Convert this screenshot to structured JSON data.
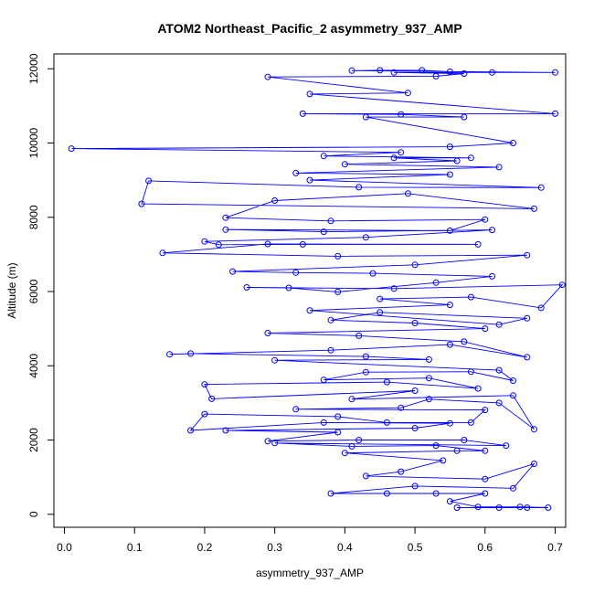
{
  "chart_data": {
    "type": "line",
    "title": "ATOM2 Northeast_Pacific_2 asymmetry_937_AMP",
    "xlabel": "asymmetry_937_AMP",
    "ylabel": "Altitude (m)",
    "xlim": [
      -0.015,
      0.715
    ],
    "ylim": [
      -350,
      12400
    ],
    "x_ticks": [
      0.0,
      0.1,
      0.2,
      0.3,
      0.4,
      0.5,
      0.6,
      0.7
    ],
    "x_tick_labels": [
      "0.0",
      "0.1",
      "0.2",
      "0.3",
      "0.4",
      "0.5",
      "0.6",
      "0.7"
    ],
    "y_ticks": [
      0,
      2000,
      4000,
      6000,
      8000,
      10000,
      12000
    ],
    "y_tick_labels": [
      "0",
      "2000",
      "4000",
      "6000",
      "8000",
      "10000",
      "12000"
    ],
    "grid": false,
    "series": [
      {
        "color": "#0000ff",
        "marker": "circle-open",
        "points": [
          [
            0.56,
            180
          ],
          [
            0.62,
            180
          ],
          [
            0.66,
            180
          ],
          [
            0.69,
            180
          ],
          [
            0.65,
            200
          ],
          [
            0.59,
            200
          ],
          [
            0.55,
            350
          ],
          [
            0.6,
            560
          ],
          [
            0.46,
            560
          ],
          [
            0.53,
            560
          ],
          [
            0.38,
            560
          ],
          [
            0.5,
            760
          ],
          [
            0.64,
            700
          ],
          [
            0.67,
            1360
          ],
          [
            0.6,
            950
          ],
          [
            0.43,
            1030
          ],
          [
            0.48,
            1150
          ],
          [
            0.54,
            1450
          ],
          [
            0.4,
            1650
          ],
          [
            0.56,
            1710
          ],
          [
            0.6,
            1710
          ],
          [
            0.53,
            1850
          ],
          [
            0.41,
            1830
          ],
          [
            0.3,
            1920
          ],
          [
            0.63,
            1850
          ],
          [
            0.57,
            2000
          ],
          [
            0.42,
            2000
          ],
          [
            0.29,
            1970
          ],
          [
            0.39,
            2210
          ],
          [
            0.23,
            2260
          ],
          [
            0.5,
            2320
          ],
          [
            0.55,
            2450
          ],
          [
            0.37,
            2470
          ],
          [
            0.18,
            2260
          ],
          [
            0.2,
            2700
          ],
          [
            0.39,
            2630
          ],
          [
            0.46,
            2470
          ],
          [
            0.58,
            2470
          ],
          [
            0.6,
            2810
          ],
          [
            0.33,
            2830
          ],
          [
            0.48,
            2870
          ],
          [
            0.52,
            3100
          ],
          [
            0.62,
            3000
          ],
          [
            0.67,
            2290
          ],
          [
            0.64,
            3200
          ],
          [
            0.41,
            3100
          ],
          [
            0.5,
            3330
          ],
          [
            0.21,
            3110
          ],
          [
            0.2,
            3500
          ],
          [
            0.46,
            3560
          ],
          [
            0.59,
            3390
          ],
          [
            0.52,
            3670
          ],
          [
            0.37,
            3620
          ],
          [
            0.43,
            3830
          ],
          [
            0.58,
            3840
          ],
          [
            0.64,
            3600
          ],
          [
            0.62,
            3880
          ],
          [
            0.3,
            4150
          ],
          [
            0.52,
            4170
          ],
          [
            0.43,
            4250
          ],
          [
            0.18,
            4330
          ],
          [
            0.15,
            4310
          ],
          [
            0.38,
            4420
          ],
          [
            0.55,
            4570
          ],
          [
            0.66,
            4230
          ],
          [
            0.57,
            4650
          ],
          [
            0.42,
            4810
          ],
          [
            0.29,
            4880
          ],
          [
            0.6,
            5000
          ],
          [
            0.5,
            5150
          ],
          [
            0.38,
            5230
          ],
          [
            0.45,
            5440
          ],
          [
            0.66,
            5280
          ],
          [
            0.62,
            5110
          ],
          [
            0.35,
            5490
          ],
          [
            0.55,
            5640
          ],
          [
            0.45,
            5800
          ],
          [
            0.58,
            5850
          ],
          [
            0.68,
            5560
          ],
          [
            0.71,
            6180
          ],
          [
            0.47,
            6080
          ],
          [
            0.26,
            6110
          ],
          [
            0.32,
            6100
          ],
          [
            0.39,
            5990
          ],
          [
            0.53,
            6240
          ],
          [
            0.61,
            6410
          ],
          [
            0.44,
            6490
          ],
          [
            0.33,
            6510
          ],
          [
            0.24,
            6540
          ],
          [
            0.5,
            6720
          ],
          [
            0.66,
            6980
          ],
          [
            0.39,
            6950
          ],
          [
            0.14,
            7040
          ],
          [
            0.29,
            7280
          ],
          [
            0.59,
            7270
          ],
          [
            0.34,
            7270
          ],
          [
            0.22,
            7260
          ],
          [
            0.2,
            7350
          ],
          [
            0.43,
            7460
          ],
          [
            0.61,
            7660
          ],
          [
            0.37,
            7610
          ],
          [
            0.23,
            7670
          ],
          [
            0.55,
            7640
          ],
          [
            0.6,
            7940
          ],
          [
            0.38,
            7900
          ],
          [
            0.23,
            7990
          ],
          [
            0.3,
            8450
          ],
          [
            0.49,
            8640
          ],
          [
            0.67,
            8230
          ],
          [
            0.11,
            8360
          ],
          [
            0.12,
            8980
          ],
          [
            0.42,
            8810
          ],
          [
            0.68,
            8800
          ],
          [
            0.35,
            9000
          ],
          [
            0.55,
            9150
          ],
          [
            0.33,
            9190
          ],
          [
            0.62,
            9350
          ],
          [
            0.4,
            9430
          ],
          [
            0.56,
            9520
          ],
          [
            0.47,
            9600
          ],
          [
            0.58,
            9600
          ],
          [
            0.37,
            9650
          ],
          [
            0.48,
            9750
          ],
          [
            0.01,
            9850
          ],
          [
            0.55,
            9900
          ],
          [
            0.64,
            10000
          ],
          [
            0.43,
            10700
          ],
          [
            0.57,
            10700
          ],
          [
            0.48,
            10770
          ],
          [
            0.34,
            10790
          ],
          [
            0.7,
            10790
          ],
          [
            0.35,
            11320
          ],
          [
            0.49,
            11350
          ],
          [
            0.29,
            11780
          ],
          [
            0.53,
            11800
          ],
          [
            0.57,
            11870
          ],
          [
            0.47,
            11900
          ],
          [
            0.7,
            11900
          ],
          [
            0.41,
            11950
          ],
          [
            0.45,
            11960
          ],
          [
            0.51,
            11960
          ],
          [
            0.55,
            11920
          ],
          [
            0.61,
            11900
          ]
        ]
      }
    ]
  }
}
